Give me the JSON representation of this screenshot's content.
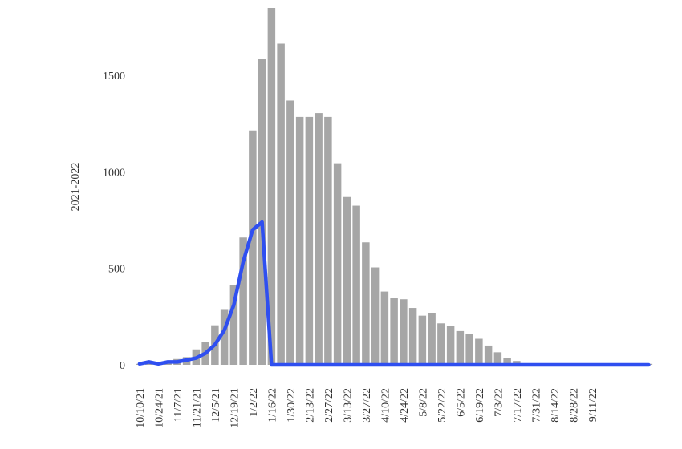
{
  "chart_data": {
    "type": "bar",
    "ylabel": "2021-2022",
    "ylim": [
      0,
      1850
    ],
    "yticks": [
      0,
      500,
      1000,
      1500
    ],
    "grid": false,
    "x_tick_labels": [
      "10/10/21",
      "10/24/21",
      "11/7/21",
      "11/21/21",
      "12/5/21",
      "12/19/21",
      "1/2/22",
      "1/16/22",
      "1/30/22",
      "2/13/22",
      "2/27/22",
      "3/13/22",
      "3/27/22",
      "4/10/22",
      "4/24/22",
      "5/8/22",
      "5/22/22",
      "6/5/22",
      "6/19/22",
      "7/3/22",
      "7/17/22",
      "7/31/22",
      "8/14/22",
      "8/28/22",
      "9/11/22"
    ],
    "series": [
      {
        "kind": "bar",
        "color": "#a6a6a6",
        "values": [
          5,
          10,
          15,
          20,
          30,
          40,
          80,
          120,
          205,
          285,
          415,
          660,
          1215,
          1585,
          1850,
          1665,
          1370,
          1285,
          1285,
          1305,
          1285,
          1045,
          870,
          825,
          635,
          505,
          380,
          345,
          340,
          295,
          255,
          270,
          215,
          200,
          175,
          160,
          135,
          100,
          65,
          35,
          20,
          5,
          5,
          5,
          5,
          5,
          5,
          5,
          5,
          5,
          5,
          5,
          5,
          5,
          5
        ]
      },
      {
        "kind": "line",
        "color": "#2f4ff0",
        "values": [
          5,
          15,
          5,
          15,
          15,
          25,
          35,
          60,
          105,
          180,
          310,
          535,
          700,
          740,
          0,
          0,
          0,
          0,
          0,
          0,
          0,
          0,
          0,
          0,
          0,
          0,
          0,
          0,
          0,
          0,
          0,
          0,
          0,
          0,
          0,
          0,
          0,
          0,
          0,
          0,
          0,
          0,
          0,
          0,
          0,
          0,
          0,
          0,
          0,
          0,
          0,
          0,
          0,
          0,
          0
        ]
      }
    ]
  }
}
